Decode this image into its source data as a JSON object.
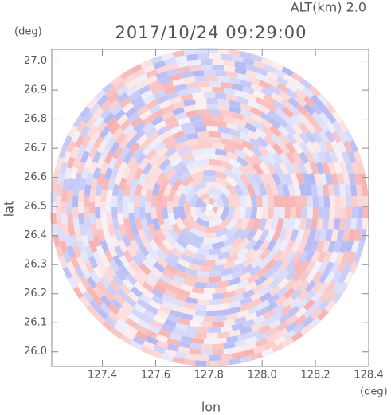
{
  "chart_data": {
    "type": "radar-field",
    "title": "2017/10/24 09:29:00",
    "annotation": "ALT(km) 2.0",
    "x_label": "lon",
    "y_label": "lat",
    "x_unit": "(deg)",
    "y_unit": "(deg)",
    "xlim": [
      127.21,
      128.4
    ],
    "ylim": [
      25.95,
      27.04
    ],
    "xticks": [
      127.4,
      127.6,
      127.8,
      {
        "value": 128.0,
        "label": "128.0"
      },
      128.2,
      128.4
    ],
    "yticks": [
      {
        "value": 26.0,
        "label": "26.0"
      },
      26.1,
      26.2,
      26.3,
      26.4,
      26.5,
      26.6,
      26.7,
      26.8,
      26.9,
      {
        "value": 27.0,
        "label": "27.0"
      }
    ],
    "colors": [
      "#f6a8a8",
      "#aab0f2"
    ]
  }
}
